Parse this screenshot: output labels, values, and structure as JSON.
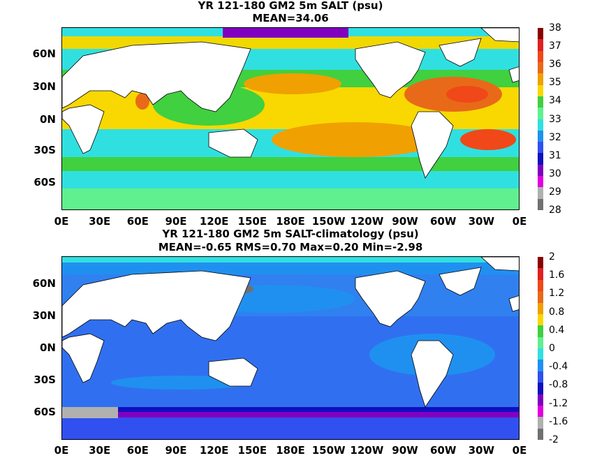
{
  "panel1": {
    "title": "YR 121-180 GM2 5m SALT (psu)",
    "subtitle": "MEAN=34.06",
    "colorbar_ticks": [
      "38",
      "37",
      "36",
      "35",
      "34",
      "33",
      "32",
      "31",
      "30",
      "29",
      "28"
    ],
    "colorbar_colors": [
      "#8b0000",
      "#e02020",
      "#f04818",
      "#e86a18",
      "#f0a000",
      "#f8d800",
      "#40d040",
      "#60f090",
      "#30e0e0",
      "#2090f0",
      "#3050f0",
      "#1010c0",
      "#8000c0",
      "#e000e0",
      "#b0b0b0",
      "#707070"
    ]
  },
  "panel2": {
    "title": "YR 121-180 GM2 5m SALT-climatology (psu)",
    "subtitle": "MEAN=-0.65   RMS=0.70   Max=0.20   Min=-2.98",
    "colorbar_ticks": [
      "2",
      "1.6",
      "1.2",
      "0.8",
      "0.4",
      "0",
      "-0.4",
      "-0.8",
      "-1.2",
      "-1.6",
      "-2"
    ],
    "colorbar_colors": [
      "#8b0000",
      "#e02020",
      "#f04818",
      "#e86a18",
      "#f0a000",
      "#f8d800",
      "#40d040",
      "#60f090",
      "#30e0e0",
      "#2090f0",
      "#3050f0",
      "#1010c0",
      "#8000c0",
      "#e000e0",
      "#b0b0b0",
      "#707070"
    ]
  },
  "lat_labels": [
    "60N",
    "30N",
    "0N",
    "30S",
    "60S"
  ],
  "lon_labels": [
    "0E",
    "30E",
    "60E",
    "90E",
    "120E",
    "150E",
    "180E",
    "150W",
    "120W",
    "90W",
    "60W",
    "30W",
    "0E"
  ]
}
